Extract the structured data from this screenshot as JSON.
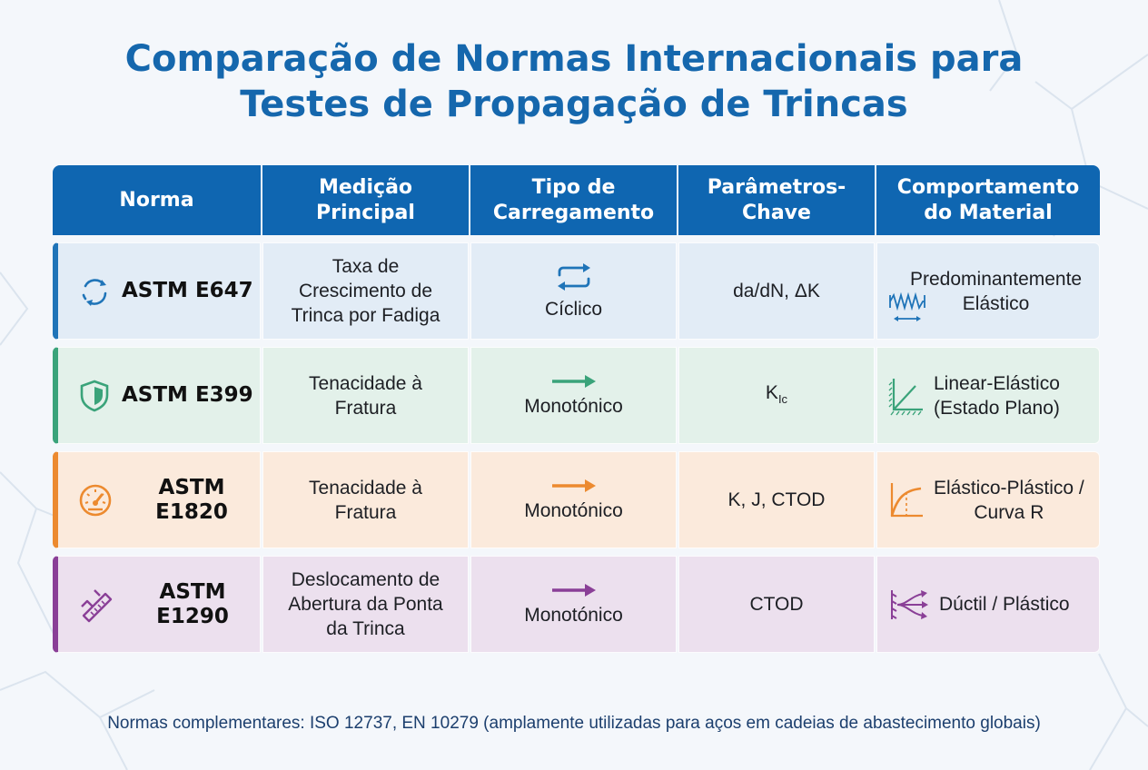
{
  "title": {
    "line1": "Comparação de Normas Internacionais para",
    "line2": "Testes de Propagação de Trincas"
  },
  "table": {
    "headers": [
      {
        "l1": "Norma",
        "l2": ""
      },
      {
        "l1": "Medição",
        "l2": "Principal"
      },
      {
        "l1": "Tipo de",
        "l2": "Carregamento"
      },
      {
        "l1": "Parâmetros-",
        "l2": "Chave"
      },
      {
        "l1": "Comportamento",
        "l2": "do Material"
      }
    ],
    "rows": [
      {
        "norm": "ASTM E647",
        "icon": "cycle-arrows-icon",
        "color": "#1f74b8",
        "measurement": [
          "Taxa de",
          "Crescimento de",
          "Trinca por Fadiga"
        ],
        "loading": "Cíclico",
        "loading_icon": "swap-arrows-icon",
        "params": "da/dN, ΔK",
        "behavior": [
          "Predominantemente",
          "Elástico"
        ],
        "behavior_icon": "spring-icon"
      },
      {
        "norm": "ASTM E399",
        "icon": "shield-icon",
        "color": "#3aa37a",
        "measurement": [
          "Tenacidade à",
          "Fratura"
        ],
        "loading": "Monotónico",
        "loading_icon": "arrow-right-icon",
        "params_main": "K",
        "params_sub": "Ic",
        "behavior": [
          "Linear-Elástico",
          "(Estado Plano)"
        ],
        "behavior_icon": "linear-curve-icon"
      },
      {
        "norm": "ASTM E1820",
        "icon": "gauge-icon",
        "color": "#ec8a2f",
        "measurement": [
          "Tenacidade à",
          "Fratura"
        ],
        "loading": "Monotónico",
        "loading_icon": "arrow-right-icon",
        "params": "K, J, CTOD",
        "behavior": [
          "Elástico-Plástico /",
          "Curva R"
        ],
        "behavior_icon": "r-curve-icon"
      },
      {
        "norm": "ASTM E1290",
        "icon": "caliper-icon",
        "color": "#8a3f97",
        "measurement": [
          "Deslocamento de",
          "Abertura da Ponta",
          "da Trinca"
        ],
        "loading": "Monotónico",
        "loading_icon": "arrow-right-icon",
        "params": "CTOD",
        "behavior": [
          "Dúctil / Plástico"
        ],
        "behavior_icon": "ductile-flow-icon"
      }
    ]
  },
  "footnote": "Normas complementares: ISO 12737, EN 10279 (amplamente utilizadas para aços em cadeias de abastecimento globais)"
}
